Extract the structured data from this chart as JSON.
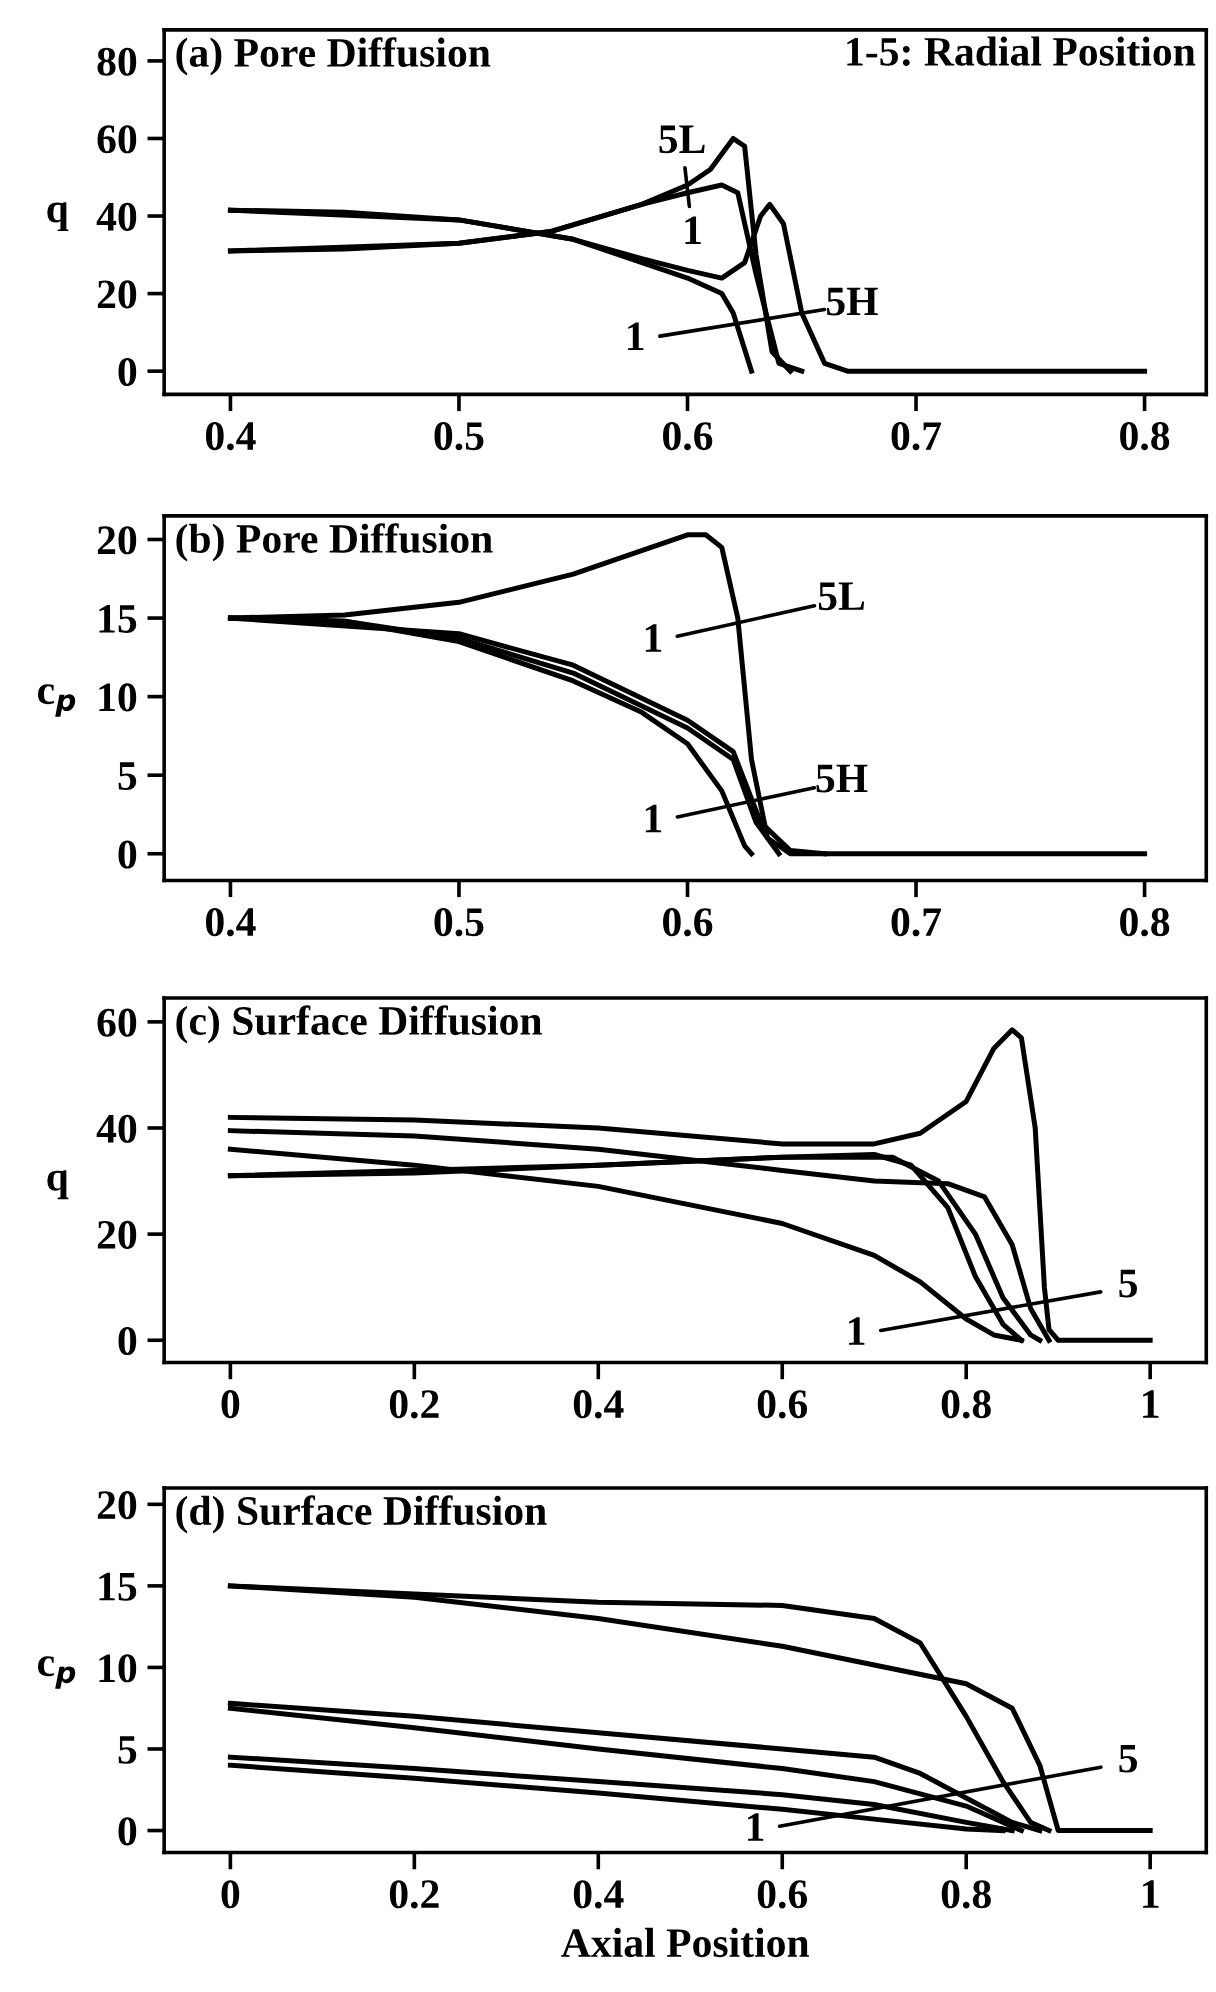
{
  "chart_data": [
    {
      "type": "line",
      "title": "(a) Pore Diffusion",
      "ylabel": "q",
      "xlim": [
        0.371,
        0.827
      ],
      "ylim": [
        -6,
        88
      ],
      "xticks": [
        0.4,
        0.5,
        0.6,
        0.7,
        0.8
      ],
      "yticks": [
        0,
        20,
        40,
        60,
        80
      ],
      "grid": false,
      "legend": false,
      "marker": "none",
      "line_style": "solid",
      "annotations": [
        "1-5: Radial Position",
        "5L",
        "1",
        "1",
        "5H"
      ],
      "series": [
        {
          "color": "#000000",
          "x": [
            0.4,
            0.45,
            0.5,
            0.55,
            0.58,
            0.6,
            0.615,
            0.625,
            0.632,
            0.636,
            0.642,
            0.65,
            0.66,
            0.67,
            0.8
          ],
          "values": [
            41.5,
            41,
            39,
            34,
            29,
            26,
            24,
            28,
            40,
            43,
            38,
            15,
            2,
            0,
            0
          ]
        },
        {
          "color": "#000000",
          "x": [
            0.4,
            0.5,
            0.55,
            0.6,
            0.615,
            0.62,
            0.628
          ],
          "values": [
            41.5,
            39,
            34,
            24,
            20,
            15,
            0
          ]
        },
        {
          "color": "#000000",
          "x": [
            0.4,
            0.45,
            0.5,
            0.54,
            0.58,
            0.6,
            0.615,
            0.622,
            0.63,
            0.64,
            0.65
          ],
          "values": [
            31,
            31.5,
            33,
            36,
            43,
            46,
            48,
            46,
            25,
            2,
            0
          ]
        },
        {
          "color": "#000000",
          "x": [
            0.4,
            0.5,
            0.54,
            0.58,
            0.6,
            0.61,
            0.62,
            0.625,
            0.63,
            0.637,
            0.645
          ],
          "values": [
            31,
            33,
            36,
            43,
            48,
            52,
            60,
            58,
            30,
            5,
            0
          ]
        }
      ]
    },
    {
      "type": "line",
      "title": "(b) Pore Diffusion",
      "ylabel": "c$_{p}$",
      "xlim": [
        0.371,
        0.827
      ],
      "ylim": [
        -1.7,
        21.5
      ],
      "xticks": [
        0.4,
        0.5,
        0.6,
        0.7,
        0.8
      ],
      "yticks": [
        0,
        5,
        10,
        15,
        20
      ],
      "grid": false,
      "legend": false,
      "marker": "none",
      "line_style": "solid",
      "annotations": [
        "1",
        "5L",
        "1",
        "5H"
      ],
      "series": [
        {
          "color": "#000000",
          "x": [
            0.4,
            0.45,
            0.5,
            0.55,
            0.6,
            0.608,
            0.615,
            0.622,
            0.628,
            0.635,
            0.645,
            0.8
          ],
          "values": [
            15,
            15.2,
            16,
            17.8,
            20.3,
            20.3,
            19.5,
            15,
            6,
            1,
            0,
            0
          ]
        },
        {
          "color": "#000000",
          "x": [
            0.4,
            0.45,
            0.5,
            0.55,
            0.58,
            0.6,
            0.615,
            0.625,
            0.628
          ],
          "values": [
            15,
            14.8,
            13.5,
            11,
            9,
            7,
            4,
            0.5,
            0
          ]
        },
        {
          "color": "#000000",
          "x": [
            0.4,
            0.45,
            0.5,
            0.55,
            0.6,
            0.62,
            0.63,
            0.64
          ],
          "values": [
            15,
            14.8,
            13.7,
            11.5,
            8,
            6,
            2,
            0
          ]
        },
        {
          "color": "#000000",
          "x": [
            0.4,
            0.5,
            0.55,
            0.6,
            0.62,
            0.632,
            0.645,
            0.66
          ],
          "values": [
            15,
            14,
            12,
            8.5,
            6.5,
            2,
            0.2,
            0
          ]
        }
      ]
    },
    {
      "type": "line",
      "title": "(c) Surface Diffusion",
      "ylabel": "q",
      "xlim": [
        -0.072,
        1.061
      ],
      "ylim": [
        -4.2,
        64.5
      ],
      "xticks": [
        0,
        0.2,
        0.4,
        0.6,
        0.8,
        1
      ],
      "yticks": [
        0,
        20,
        40,
        60
      ],
      "grid": false,
      "legend": false,
      "marker": "none",
      "line_style": "solid",
      "annotations": [
        "1",
        "5"
      ],
      "series": [
        {
          "color": "#000000",
          "x": [
            0,
            0.2,
            0.4,
            0.6,
            0.7,
            0.75,
            0.8,
            0.83,
            0.85,
            0.86,
            0.875,
            0.885,
            0.89,
            0.9,
            1
          ],
          "values": [
            42,
            41.5,
            40,
            37,
            37,
            39,
            45,
            55,
            58.5,
            57,
            40,
            10,
            2,
            0,
            0
          ]
        },
        {
          "color": "#000000",
          "x": [
            0,
            0.2,
            0.4,
            0.6,
            0.7,
            0.78,
            0.82,
            0.85,
            0.87,
            0.89
          ],
          "values": [
            39.5,
            38.5,
            36,
            32,
            30,
            29.5,
            27,
            18,
            6,
            0
          ]
        },
        {
          "color": "#000000",
          "x": [
            0,
            0.2,
            0.4,
            0.6,
            0.7,
            0.74,
            0.78,
            0.81,
            0.84,
            0.86
          ],
          "values": [
            31,
            31.5,
            33,
            34.5,
            35,
            33,
            25,
            12,
            3,
            0
          ]
        },
        {
          "color": "#000000",
          "x": [
            0,
            0.4,
            0.6,
            0.72,
            0.77,
            0.81,
            0.84,
            0.87,
            0.88
          ],
          "values": [
            31,
            33,
            34.5,
            34.5,
            30,
            20,
            8,
            1,
            0
          ]
        },
        {
          "color": "#000000",
          "x": [
            0,
            0.2,
            0.4,
            0.6,
            0.7,
            0.75,
            0.8,
            0.83,
            0.86
          ],
          "values": [
            36,
            33,
            29,
            22,
            16,
            11,
            4,
            1,
            0
          ]
        }
      ]
    },
    {
      "type": "line",
      "title": "(d) Surface Diffusion",
      "ylabel": "c$_{p}$",
      "xlabel": "Axial Position",
      "xlim": [
        -0.072,
        1.061
      ],
      "ylim": [
        -1.35,
        21
      ],
      "xticks": [
        0,
        0.2,
        0.4,
        0.6,
        0.8,
        1
      ],
      "yticks": [
        0,
        5,
        10,
        15,
        20
      ],
      "grid": false,
      "legend": false,
      "marker": "none",
      "line_style": "solid",
      "annotations": [
        "1",
        "5"
      ],
      "series": [
        {
          "color": "#000000",
          "x": [
            0,
            0.2,
            0.4,
            0.6,
            0.8,
            0.85,
            0.88,
            0.895,
            0.9,
            1
          ],
          "values": [
            15,
            14.3,
            13,
            11.3,
            9,
            7.5,
            4,
            1,
            0,
            0
          ]
        },
        {
          "color": "#000000",
          "x": [
            0,
            0.2,
            0.4,
            0.6,
            0.7,
            0.75,
            0.8,
            0.84,
            0.87,
            0.89
          ],
          "values": [
            15,
            14.5,
            14,
            13.8,
            13,
            11.5,
            7,
            3,
            0.5,
            0
          ]
        },
        {
          "color": "#000000",
          "x": [
            0,
            0.2,
            0.4,
            0.6,
            0.7,
            0.75,
            0.8,
            0.85,
            0.88
          ],
          "values": [
            7.8,
            7,
            6,
            5,
            4.5,
            3.5,
            2,
            0.5,
            0
          ]
        },
        {
          "color": "#000000",
          "x": [
            0,
            0.2,
            0.4,
            0.6,
            0.7,
            0.8,
            0.86
          ],
          "values": [
            7.5,
            6.3,
            5,
            3.8,
            3,
            1.5,
            0
          ]
        },
        {
          "color": "#000000",
          "x": [
            0,
            0.2,
            0.4,
            0.6,
            0.7,
            0.8,
            0.85
          ],
          "values": [
            4.5,
            3.8,
            3,
            2.2,
            1.6,
            0.5,
            0
          ]
        },
        {
          "color": "#000000",
          "x": [
            0,
            0.2,
            0.4,
            0.6,
            0.7,
            0.8,
            0.84
          ],
          "values": [
            4,
            3.2,
            2.3,
            1.3,
            0.7,
            0.1,
            0
          ]
        }
      ]
    }
  ]
}
